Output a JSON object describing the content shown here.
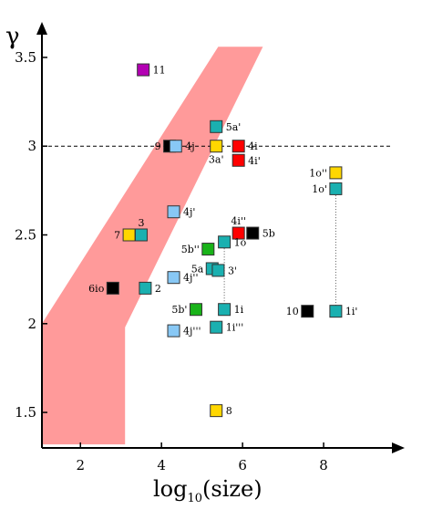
{
  "chart_data": {
    "type": "scatter",
    "title": "",
    "xlabel_main": "log",
    "xlabel_sub": "10",
    "xlabel_tail": "(size)",
    "ylabel": "γ",
    "xlim": [
      1.05,
      10.0
    ],
    "ylim": [
      1.3,
      3.7
    ],
    "x_ticks": [
      {
        "value": 2,
        "label": "2"
      },
      {
        "value": 4,
        "label": "4"
      },
      {
        "value": 6,
        "label": "6"
      },
      {
        "value": 8,
        "label": "8"
      }
    ],
    "y_ticks": [
      {
        "value": 1.5,
        "label": "1.5"
      },
      {
        "value": 2,
        "label": "2"
      },
      {
        "value": 2.5,
        "label": "2.5"
      },
      {
        "value": 3,
        "label": "3"
      },
      {
        "value": 3.5,
        "label": "3.5"
      }
    ],
    "reference_line_y": 3.0,
    "band": {
      "color": "#ff9a9a",
      "polygon": [
        [
          1.05,
          1.32
        ],
        [
          3.1,
          1.32
        ],
        [
          3.1,
          1.98
        ],
        [
          6.5,
          3.56
        ],
        [
          5.4,
          3.56
        ],
        [
          1.05,
          2.0
        ]
      ]
    },
    "colors": {
      "purple": "#b300b3",
      "cyan": "#1ab0b0",
      "light_blue": "#88c8f5",
      "yellow": "#ffd700",
      "red": "#ff0000",
      "black": "#000000",
      "green": "#19b319"
    },
    "connectors": [
      {
        "x": 5.55,
        "y1": 2.08,
        "y2": 2.47
      },
      {
        "x": 8.3,
        "y1": 2.07,
        "y2": 2.77
      }
    ],
    "points": [
      {
        "x": 3.55,
        "y": 3.43,
        "color": "purple",
        "label": "11",
        "side": "right"
      },
      {
        "x": 5.35,
        "y": 3.11,
        "color": "cyan",
        "label": "5a'",
        "side": "right"
      },
      {
        "x": 4.2,
        "y": 3.0,
        "color": "black",
        "label": "9",
        "side": "left"
      },
      {
        "x": 4.35,
        "y": 3.0,
        "color": "light_blue",
        "label": "4j",
        "side": "right"
      },
      {
        "x": 5.35,
        "y": 3.0,
        "color": "yellow",
        "label": "3a'",
        "side": "below"
      },
      {
        "x": 5.9,
        "y": 3.0,
        "color": "red",
        "label": "4i",
        "side": "right"
      },
      {
        "x": 5.9,
        "y": 2.92,
        "color": "red",
        "label": "4i'",
        "side": "right"
      },
      {
        "x": 8.3,
        "y": 2.85,
        "color": "yellow",
        "label": "1o''",
        "side": "left"
      },
      {
        "x": 8.3,
        "y": 2.76,
        "color": "cyan",
        "label": "1o'",
        "side": "left"
      },
      {
        "x": 4.3,
        "y": 2.63,
        "color": "light_blue",
        "label": "4j'",
        "side": "right"
      },
      {
        "x": 3.2,
        "y": 2.5,
        "color": "yellow",
        "label": "7",
        "side": "left"
      },
      {
        "x": 3.5,
        "y": 2.5,
        "color": "cyan",
        "label": "3",
        "side": "above"
      },
      {
        "x": 5.9,
        "y": 2.51,
        "color": "red",
        "label": "4i''",
        "side": "above"
      },
      {
        "x": 6.25,
        "y": 2.51,
        "color": "black",
        "label": "5b",
        "side": "right"
      },
      {
        "x": 5.55,
        "y": 2.46,
        "color": "cyan",
        "label": "1o",
        "side": "right"
      },
      {
        "x": 5.15,
        "y": 2.42,
        "color": "green",
        "label": "5b''",
        "side": "left"
      },
      {
        "x": 5.25,
        "y": 2.31,
        "color": "cyan",
        "label": "5a",
        "side": "left"
      },
      {
        "x": 5.4,
        "y": 2.3,
        "color": "cyan",
        "label": "3'",
        "side": "right"
      },
      {
        "x": 4.3,
        "y": 2.26,
        "color": "light_blue",
        "label": "4j''",
        "side": "right"
      },
      {
        "x": 2.8,
        "y": 2.2,
        "color": "black",
        "label": "6io",
        "side": "left"
      },
      {
        "x": 3.6,
        "y": 2.2,
        "color": "cyan",
        "label": "2",
        "side": "right"
      },
      {
        "x": 4.85,
        "y": 2.08,
        "color": "green",
        "label": "5b'",
        "side": "left"
      },
      {
        "x": 5.55,
        "y": 2.08,
        "color": "cyan",
        "label": "1i",
        "side": "right"
      },
      {
        "x": 7.6,
        "y": 2.07,
        "color": "black",
        "label": "10",
        "side": "left"
      },
      {
        "x": 8.3,
        "y": 2.07,
        "color": "cyan",
        "label": "1i'",
        "side": "right"
      },
      {
        "x": 5.35,
        "y": 1.98,
        "color": "cyan",
        "label": "1i'''",
        "side": "right"
      },
      {
        "x": 4.3,
        "y": 1.96,
        "color": "light_blue",
        "label": "4j'''",
        "side": "right"
      },
      {
        "x": 5.35,
        "y": 1.51,
        "color": "yellow",
        "label": "8",
        "side": "right"
      }
    ]
  }
}
